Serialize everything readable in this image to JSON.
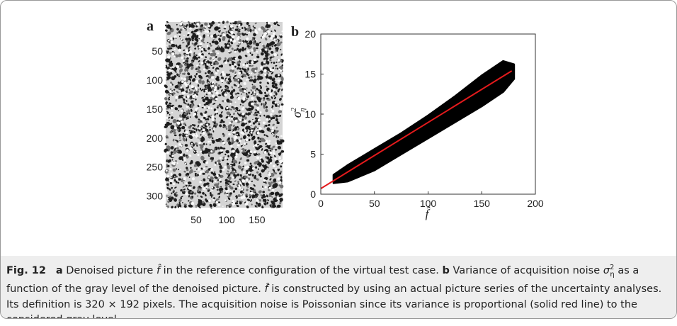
{
  "chart_data": [
    {
      "type": "image",
      "label": "a",
      "xlim": [
        0,
        192
      ],
      "ylim": [
        0,
        320
      ],
      "xticks": [
        50,
        100,
        150
      ],
      "yticks": [
        50,
        100,
        150,
        200,
        250,
        300
      ]
    },
    {
      "type": "scatter",
      "label": "b",
      "xlabel": "f̂",
      "ylabel": {
        "symbol": "σ",
        "sub": "η",
        "sup": "2"
      },
      "xlim": [
        0,
        200
      ],
      "ylim": [
        0,
        20
      ],
      "xticks": [
        0,
        50,
        100,
        150,
        200
      ],
      "yticks": [
        0,
        5,
        10,
        15,
        20
      ],
      "cloud": {
        "color": "#000000",
        "x": [
          12,
          25,
          50,
          75,
          100,
          125,
          150,
          170,
          180
        ],
        "upper": [
          2.4,
          3.6,
          5.6,
          7.6,
          9.8,
          12.2,
          14.8,
          16.6,
          16.2
        ],
        "lower": [
          1.4,
          1.6,
          3.0,
          5.0,
          7.0,
          9.0,
          11.0,
          12.8,
          14.4
        ]
      },
      "fit": {
        "color": "#e41a1c",
        "x": [
          0,
          178
        ],
        "values": [
          0.7,
          15.4
        ]
      }
    }
  ],
  "caption": {
    "label": "Fig. 12",
    "a": "a",
    "text_a1": "Denoised picture",
    "f": "f̂",
    "text_a2": "in the reference configuration of the virtual test case.",
    "b": "b",
    "text_b1": "Variance of acquisition noise",
    "sym": "σ",
    "sub": "η",
    "sup": "2",
    "text_b2": "as a function of the gray level of the denoised picture.",
    "f2": "f̂",
    "text_b3": "is constructed by using an actual picture series of the uncertainty analyses. Its definition is 320 × 192 pixels. The acquisition noise is Poissonian since its variance is proportional (solid red line) to the considered gray level"
  }
}
